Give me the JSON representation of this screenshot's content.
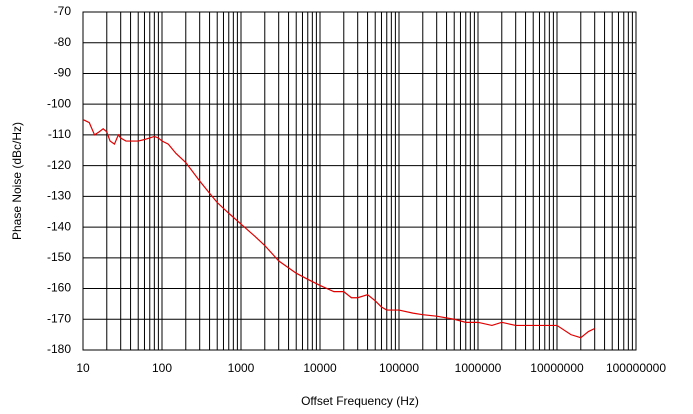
{
  "chart_data": {
    "type": "line",
    "xlabel": "Offset Frequency (Hz)",
    "ylabel": "Phase Noise (dBc/Hz)",
    "xscale": "log",
    "grid": true,
    "minor_grid": true,
    "color": "#e00000",
    "x": [
      10,
      12,
      14,
      16,
      18,
      20,
      22,
      25,
      28,
      30,
      35,
      40,
      50,
      60,
      70,
      80,
      90,
      100,
      120,
      150,
      200,
      300,
      400,
      500,
      700,
      1000,
      1500,
      2000,
      3000,
      5000,
      7000,
      10000,
      15000,
      20000,
      25000,
      30000,
      40000,
      50000,
      60000,
      70000,
      100000,
      150000,
      200000,
      300000,
      500000,
      700000,
      1000000,
      1500000,
      2000000,
      3000000,
      5000000,
      7000000,
      10000000,
      15000000,
      20000000,
      25000000,
      30000000
    ],
    "values": [
      -105,
      -106,
      -110,
      -109,
      -108,
      -109,
      -112,
      -113,
      -110,
      -111,
      -112,
      -112,
      -112,
      -111.5,
      -111,
      -110.5,
      -111,
      -112,
      -113,
      -116,
      -119,
      -125,
      -129,
      -132,
      -135.5,
      -139,
      -143,
      -146,
      -151,
      -155,
      -157,
      -159,
      -161,
      -161,
      -163,
      -163,
      -162,
      -164,
      -166,
      -167,
      -167,
      -168,
      -168.5,
      -169,
      -170,
      -171,
      -171,
      -172,
      -171,
      -172,
      -172,
      -172,
      -172,
      -175,
      -176,
      -174,
      -173
    ],
    "xlim": [
      10,
      100000000
    ],
    "xticks": [
      10,
      100,
      1000,
      10000,
      100000,
      1000000,
      10000000,
      100000000
    ],
    "ylim": [
      -180,
      -70
    ],
    "yticks": [
      -180,
      -170,
      -160,
      -150,
      -140,
      -130,
      -120,
      -110,
      -100,
      -90,
      -80,
      -70
    ]
  }
}
